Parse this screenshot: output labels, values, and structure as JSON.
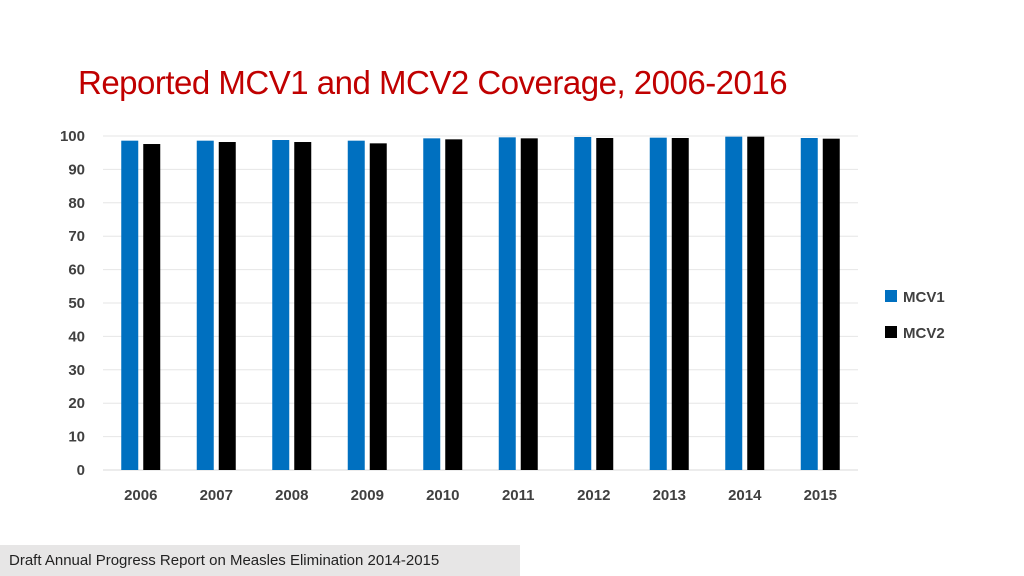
{
  "title": "Reported MCV1 and MCV2 Coverage, 2006-2016",
  "footer": "Draft Annual Progress Report on Measles Elimination 2014-2015",
  "chart_data": {
    "type": "bar",
    "title": "Reported MCV1 and MCV2 Coverage, 2006-2016",
    "xlabel": "",
    "ylabel": "",
    "ylim": [
      0,
      100
    ],
    "yticks": [
      0,
      10,
      20,
      30,
      40,
      50,
      60,
      70,
      80,
      90,
      100
    ],
    "categories": [
      "2006",
      "2007",
      "2008",
      "2009",
      "2010",
      "2011",
      "2012",
      "2013",
      "2014",
      "2015"
    ],
    "series": [
      {
        "name": "MCV1",
        "color": "#0070c0",
        "values": [
          98.6,
          98.6,
          98.8,
          98.6,
          99.3,
          99.6,
          99.7,
          99.5,
          99.8,
          99.4
        ]
      },
      {
        "name": "MCV2",
        "color": "#000000",
        "values": [
          97.6,
          98.2,
          98.2,
          97.8,
          99.0,
          99.3,
          99.4,
          99.4,
          99.8,
          99.2
        ]
      }
    ],
    "grid": true,
    "legend_position": "right"
  }
}
